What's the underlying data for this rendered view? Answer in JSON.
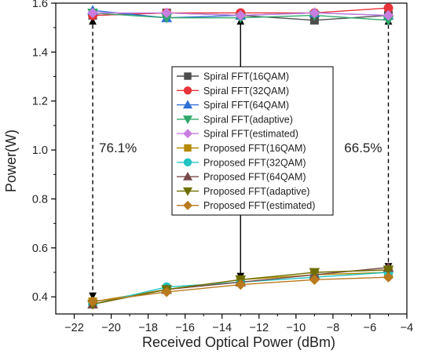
{
  "chart_data": {
    "type": "line",
    "title": "",
    "xlabel": "Received Optical Power (dBm)",
    "ylabel": "Power(W)",
    "xlim": [
      -23,
      -4
    ],
    "ylim": [
      0.33,
      1.6
    ],
    "xticks": [
      -22,
      -20,
      -18,
      -16,
      -14,
      -12,
      -10,
      -8,
      -6,
      -4
    ],
    "yticks": [
      0.4,
      0.6,
      0.8,
      1.0,
      1.2,
      1.4,
      1.6
    ],
    "ytick_labels": [
      "0.4",
      "0.6",
      "0.8",
      "1.0",
      "1.2",
      "1.4",
      "1.6"
    ],
    "x": [
      -21,
      -17,
      -13,
      -9,
      -5
    ],
    "legend_position": "center",
    "grid": false,
    "series": [
      {
        "name": "Spiral FFT(16QAM)",
        "color": "#4d4d4d",
        "marker": "square",
        "values": [
          1.55,
          1.56,
          1.55,
          1.53,
          1.55
        ]
      },
      {
        "name": "Spiral FFT(32QAM)",
        "color": "#e8333a",
        "marker": "circle",
        "values": [
          1.55,
          1.56,
          1.56,
          1.56,
          1.58
        ]
      },
      {
        "name": "Spiral FFT(64QAM)",
        "color": "#2f6fd6",
        "marker": "triangle-up",
        "values": [
          1.57,
          1.54,
          1.55,
          1.56,
          1.55
        ]
      },
      {
        "name": "Spiral FFT(adaptive)",
        "color": "#2fa86b",
        "marker": "triangle-down",
        "values": [
          1.56,
          1.54,
          1.54,
          1.55,
          1.53
        ]
      },
      {
        "name": "Spiral FFT(estimated)",
        "color": "#c77ee0",
        "marker": "diamond",
        "values": [
          1.56,
          1.56,
          1.55,
          1.56,
          1.55
        ]
      },
      {
        "name": "Proposed FFT(16QAM)",
        "color": "#b58a00",
        "marker": "square",
        "values": [
          0.38,
          0.43,
          0.47,
          0.49,
          0.5
        ]
      },
      {
        "name": "Proposed FFT(32QAM)",
        "color": "#22c4c4",
        "marker": "circle",
        "values": [
          0.37,
          0.44,
          0.46,
          0.48,
          0.5
        ]
      },
      {
        "name": "Proposed FFT(64QAM)",
        "color": "#7a4a4a",
        "marker": "triangle-up",
        "values": [
          0.37,
          0.43,
          0.46,
          0.49,
          0.52
        ]
      },
      {
        "name": "Proposed FFT(adaptive)",
        "color": "#6e6e00",
        "marker": "triangle-down",
        "values": [
          0.37,
          0.43,
          0.47,
          0.5,
          0.51
        ]
      },
      {
        "name": "Proposed FFT(estimated)",
        "color": "#b87a1e",
        "marker": "diamond",
        "values": [
          0.38,
          0.42,
          0.45,
          0.47,
          0.48
        ]
      }
    ],
    "annotations": [
      {
        "text": "76.1%",
        "x": -21,
        "y_top": 1.55,
        "y_bottom": 0.38,
        "style": "dashed-double-arrow"
      },
      {
        "text": "66.5%",
        "x": -5,
        "y_top": 1.55,
        "y_bottom": 0.5,
        "style": "dashed-double-arrow"
      },
      {
        "x": -13,
        "y_top": 1.55,
        "y_bottom": 0.46,
        "style": "solid-double-arrow"
      }
    ]
  }
}
